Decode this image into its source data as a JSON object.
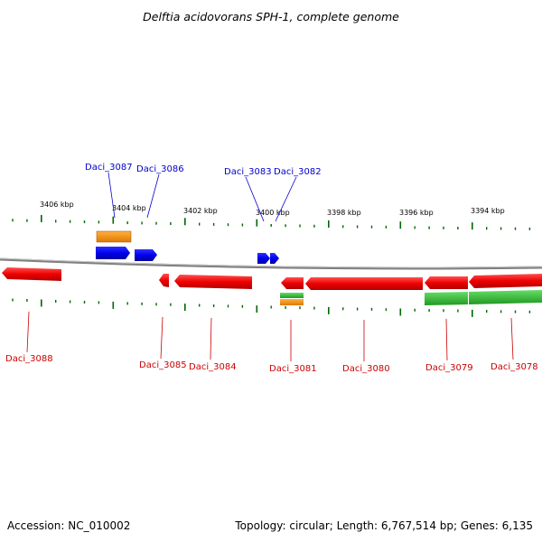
{
  "title": "Delftia acidovorans SPH-1, complete genome",
  "footer": {
    "accession": "Accession: NC_010002",
    "summary": "Topology: circular; Length: 6,767,514 bp; Genes: 6,135"
  },
  "scale_labels": [
    "3406 kbp",
    "3404 kbp",
    "3402 kbp",
    "3400 kbp",
    "3398 kbp",
    "3396 kbp",
    "3394 kbp"
  ],
  "genes_forward": [
    "Daci_3087",
    "Daci_3086",
    "Daci_3083",
    "Daci_3082"
  ],
  "genes_reverse": [
    "Daci_3088",
    "Daci_3085",
    "Daci_3084",
    "Daci_3081",
    "Daci_3080",
    "Daci_3079",
    "Daci_3078"
  ],
  "colors": {
    "forward_gene": "#0000ee",
    "reverse_gene": "#ee0000",
    "rna_orange": "#f08c00",
    "green_feature": "#33bb33",
    "ticks": "#006600",
    "backbone": "#808080"
  }
}
